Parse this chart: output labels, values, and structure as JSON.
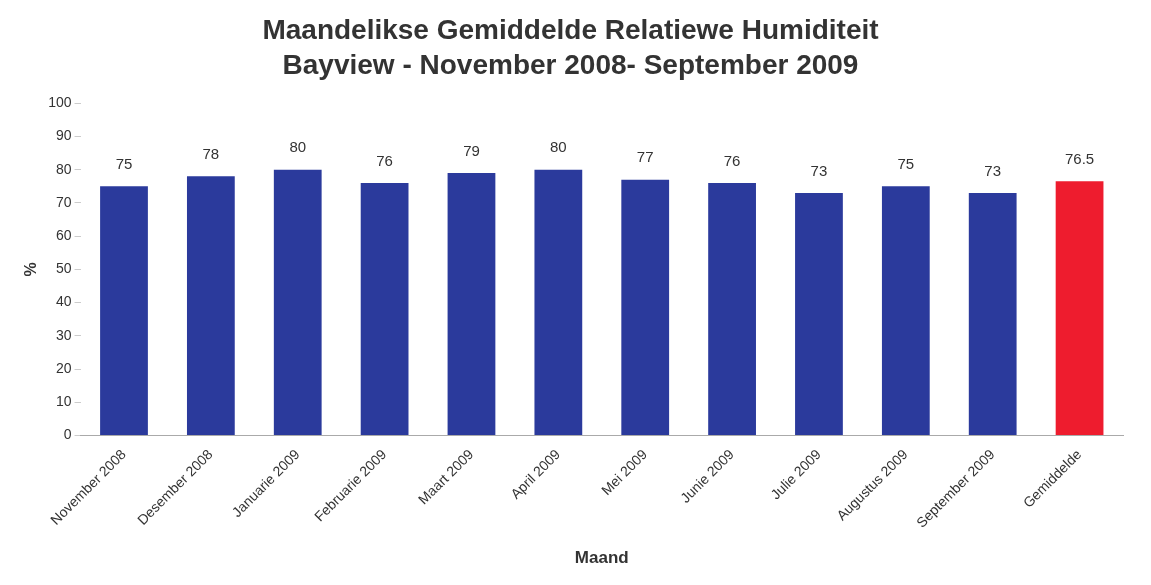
{
  "chart_data": {
    "type": "bar",
    "title": "Maandelikse Gemiddelde Relatiewe Humiditeit",
    "subtitle": "Bayview - November 2008- September 2009",
    "xlabel": "Maand",
    "ylabel": "%",
    "categories": [
      "November 2008",
      "Desember 2008",
      "Januarie 2009",
      "Februarie 2009",
      "Maart 2009",
      "April 2009",
      "Mei 2009",
      "Junie 2009",
      "Julie 2009",
      "Augustus 2009",
      "September 2009",
      "Gemiddelde"
    ],
    "values": [
      75,
      78,
      80,
      76,
      79,
      80,
      77,
      76,
      73,
      75,
      73,
      76.5
    ],
    "colors": [
      "#2b3a9c",
      "#2b3a9c",
      "#2b3a9c",
      "#2b3a9c",
      "#2b3a9c",
      "#2b3a9c",
      "#2b3a9c",
      "#2b3a9c",
      "#2b3a9c",
      "#2b3a9c",
      "#2b3a9c",
      "#ee1c2e"
    ],
    "ylim": [
      0,
      100
    ],
    "yticks": [
      0,
      10,
      20,
      30,
      40,
      50,
      60,
      70,
      80,
      90,
      100
    ],
    "grid": false,
    "legend": false,
    "data_labels": true
  }
}
